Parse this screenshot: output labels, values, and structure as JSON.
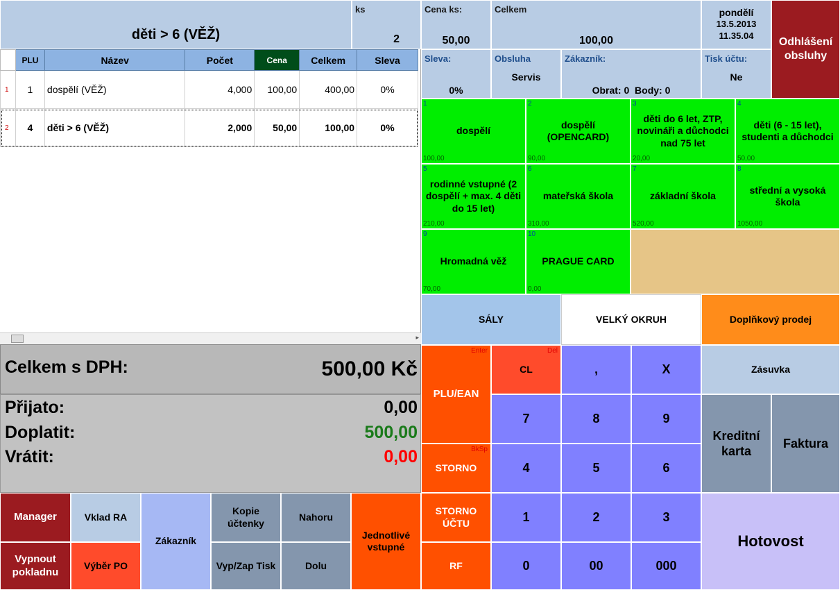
{
  "header": {
    "item_name": "děti > 6 (VĚŽ)",
    "ks_label": "ks",
    "ks_value": "2",
    "cena_ks_label": "Cena ks:",
    "cena_ks_value": "50,00",
    "celkem_label": "Celkem",
    "celkem_value": "100,00",
    "day": "pondělí",
    "date": "13.5.2013",
    "time": "11.35.04",
    "logout_label": "Odhlášení obsluhy"
  },
  "info": {
    "sleva_label": "Sleva:",
    "sleva_value": "0%",
    "obsluha_label": "Obsluha",
    "obsluha_value": "Servis",
    "zakaznik_label": "Zákazník:",
    "zakaznik_value": "Obrat: 0  Body: 0",
    "tisk_label": "Tisk účtu:",
    "tisk_value": "Ne"
  },
  "table": {
    "columns": [
      "PLU",
      "Název",
      "Počet",
      "Cena",
      "Celkem",
      "Sleva"
    ],
    "rows": [
      {
        "idx": "1",
        "plu": "1",
        "name": "dospělí (VĚŽ)",
        "count": "4,000",
        "price": "100,00",
        "total": "400,00",
        "discount": "0%"
      },
      {
        "idx": "2",
        "plu": "4",
        "name": "děti > 6 (VĚŽ)",
        "count": "2,000",
        "price": "50,00",
        "total": "100,00",
        "discount": "0%"
      }
    ]
  },
  "totals": {
    "celkem_label": "Celkem s DPH:",
    "celkem_value": "500,00 Kč",
    "prijato_label": "Přijato:",
    "prijato_value": "0,00",
    "doplatit_label": "Doplatit:",
    "doplatit_value": "500,00",
    "vratit_label": "Vrátit:",
    "vratit_value": "0,00",
    "doplatit_color": "#1a7a1a",
    "vratit_color": "#ff0000"
  },
  "plu_buttons": [
    {
      "num": "1",
      "name": "dospělí",
      "price": "100,00"
    },
    {
      "num": "2",
      "name": "dospělí (OPENCARD)",
      "price": "90,00"
    },
    {
      "num": "3",
      "name": "děti do 6 let, ZTP, novináři a důchodci nad 75 let",
      "price": "20,00"
    },
    {
      "num": "4",
      "name": "děti (6 - 15 let), studenti a důchodci",
      "price": "50,00"
    },
    {
      "num": "5",
      "name": "rodinné vstupné (2 dospělí + max. 4 děti do 15 let)",
      "price": "210,00"
    },
    {
      "num": "6",
      "name": "mateřská škola",
      "price": "310,00"
    },
    {
      "num": "7",
      "name": "základní škola",
      "price": "520,00"
    },
    {
      "num": "8",
      "name": "střední a vysoká škola",
      "price": "1050,00"
    },
    {
      "num": "9",
      "name": "Hromadná věž",
      "price": "70,00"
    },
    {
      "num": "10",
      "name": "PRAGUE CARD",
      "price": "0,00"
    }
  ],
  "categories": {
    "saly": "SÁLY",
    "velky_okruh": "VELKÝ OKRUH",
    "doplnkovy": "Doplňkový prodej"
  },
  "keypad": {
    "plu_ean": "PLU/EAN",
    "enter_hint": "Enter",
    "cl": "CL",
    "del_hint": "Del",
    "comma": ",",
    "x": "X",
    "storno": "STORNO",
    "bksp_hint": "BkSp",
    "storno_uctu": "STORNO ÚČTU",
    "rf": "RF",
    "k7": "7",
    "k8": "8",
    "k9": "9",
    "k4": "4",
    "k5": "5",
    "k6": "6",
    "k1": "1",
    "k2": "2",
    "k3": "3",
    "k0": "0",
    "k00": "00",
    "k000": "000"
  },
  "payment": {
    "zasuvka": "Zásuvka",
    "kreditni": "Kreditní karta",
    "faktura": "Faktura",
    "hotovost": "Hotovost"
  },
  "bottom": {
    "manager": "Manager",
    "vklad": "Vklad RA",
    "zakaznik": "Zákazník",
    "kopie": "Kopie účtenky",
    "nahoru": "Nahoru",
    "jednotlive": "Jednotlivé vstupné",
    "vypnout": "Vypnout pokladnu",
    "vyber": "Výběr PO",
    "vypzap": "Vyp/Zap Tisk",
    "dolu": "Dolu"
  },
  "colors": {
    "header_blue": "#b8cce4",
    "plu_green": "#00ee00",
    "orange": "#ff5000",
    "cl_red": "#ff4b2b",
    "keypad_blue": "#8080ff",
    "dark_red": "#9b1b20",
    "slate": "#8496ad",
    "lavender": "#c8c0f8"
  }
}
